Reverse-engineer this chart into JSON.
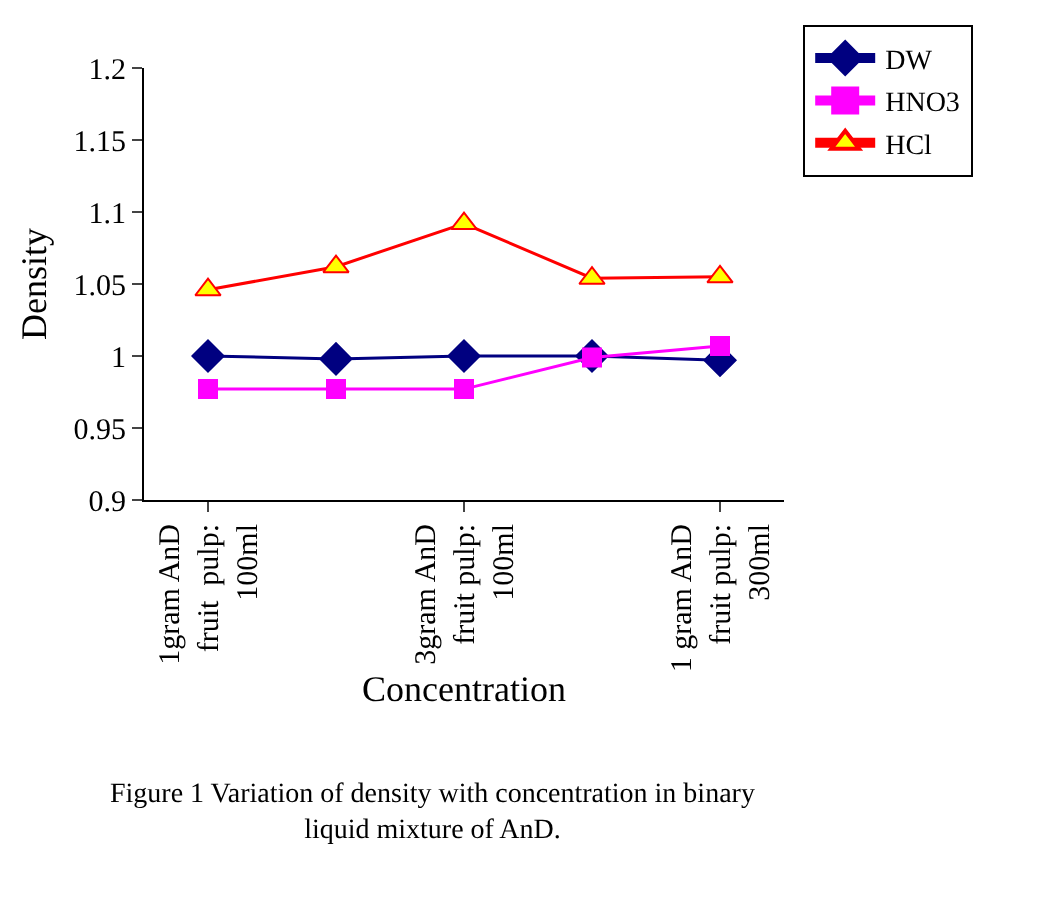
{
  "chart_data": {
    "type": "line",
    "xlabel": "Concentration",
    "ylabel": "Density",
    "categories": [
      "1gram AnD\nfruit  pulp:\n100ml",
      null,
      "3gram AnD\nfruit pulp:\n100ml",
      null,
      "1 gram AnD\nfruit pulp:\n300ml"
    ],
    "series": [
      {
        "name": "DW",
        "color": "#000080",
        "marker": "diamond",
        "values": [
          1.0,
          0.998,
          1.0,
          1.0,
          0.997
        ]
      },
      {
        "name": "HNO3",
        "color": "#ff00ff",
        "marker": "square",
        "values": [
          0.977,
          0.977,
          0.977,
          0.999,
          1.007
        ]
      },
      {
        "name": "HCl",
        "color": "#ff0000",
        "marker": "triangle",
        "values": [
          1.046,
          1.062,
          1.092,
          1.054,
          1.055
        ]
      }
    ],
    "ylim": [
      0.9,
      1.2
    ],
    "yticks": [
      0.9,
      0.95,
      1,
      1.05,
      1.1,
      1.15,
      1.2
    ],
    "grid": false,
    "legend": "top right",
    "annotations": [
      "Figure 1 Variation of density with concentration in binary\nliquid mixture of AnD."
    ]
  }
}
